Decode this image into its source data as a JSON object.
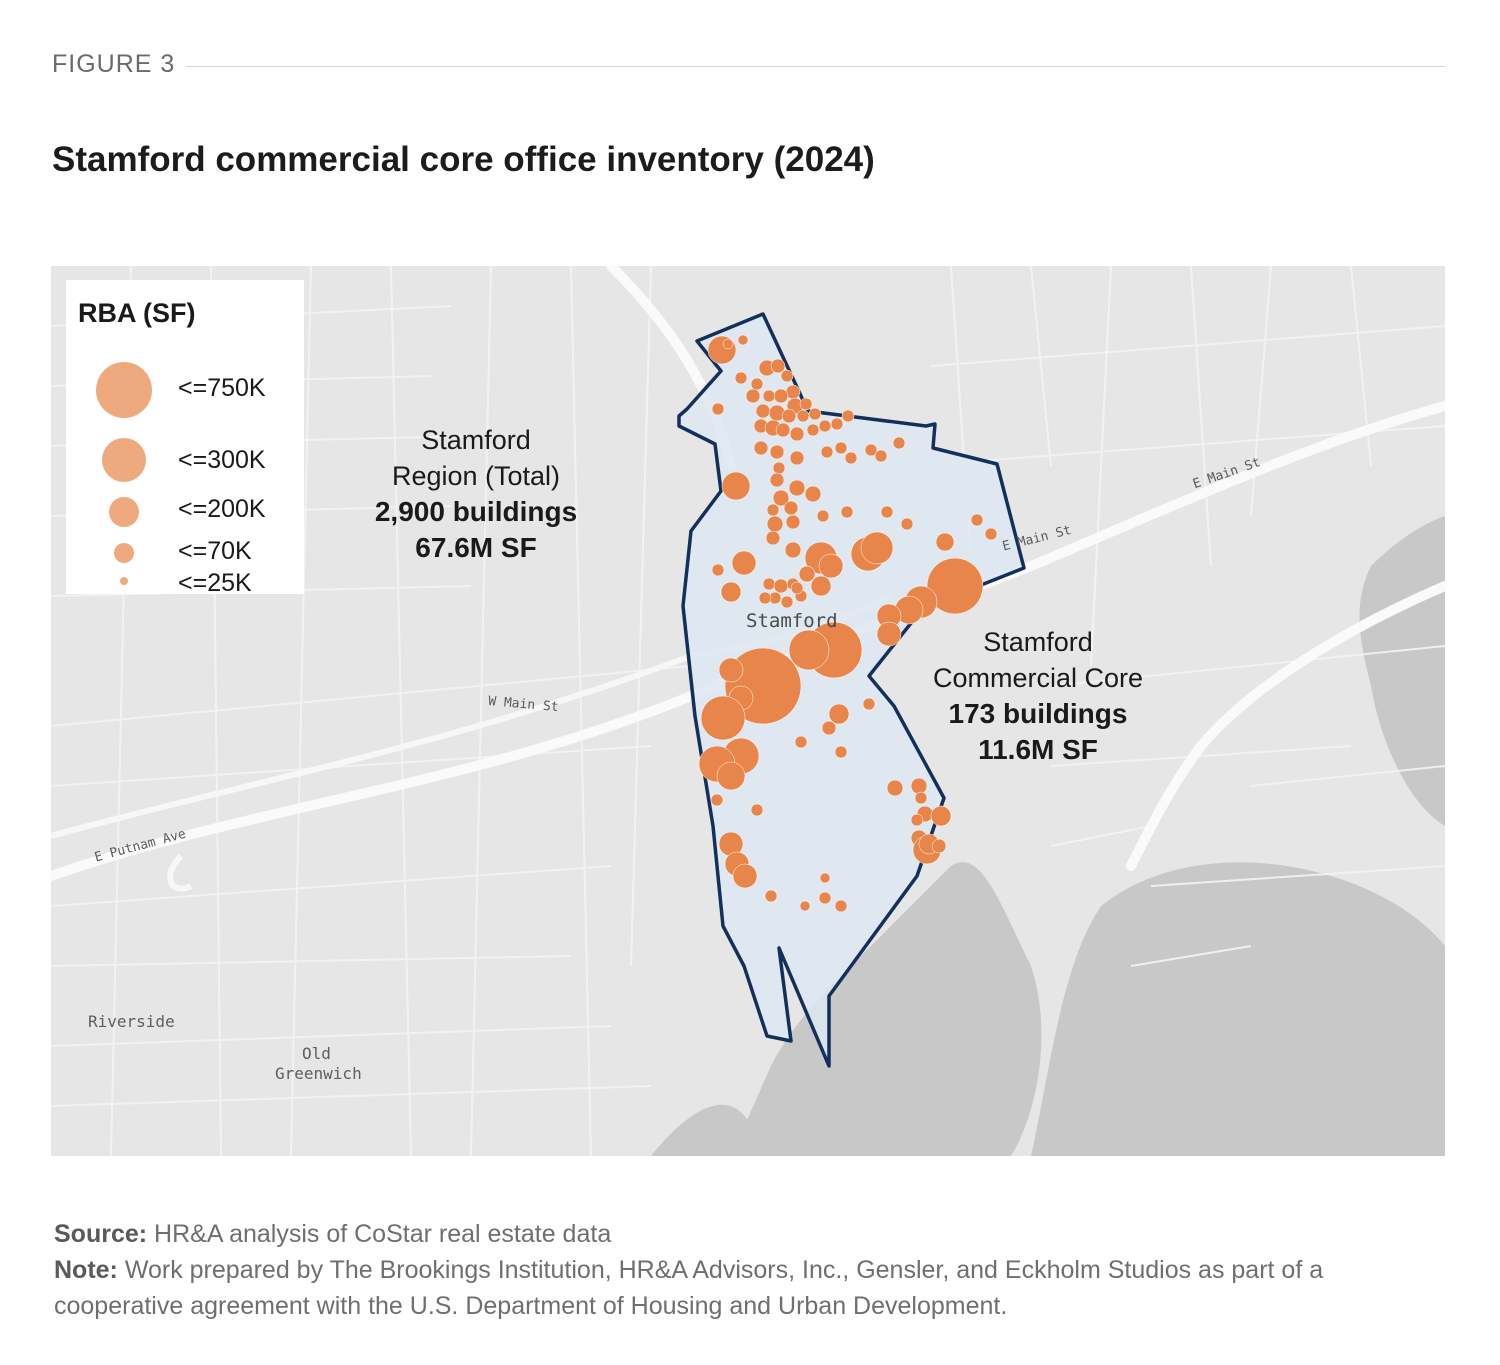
{
  "figure_label": "FIGURE 3",
  "title": "Stamford commercial core office inventory (2024)",
  "legend": {
    "title": "RBA (SF)",
    "items": [
      {
        "label": "<=750K"
      },
      {
        "label": "<=300K"
      },
      {
        "label": "<=200K"
      },
      {
        "label": "<=70K"
      },
      {
        "label": "<=25K"
      }
    ]
  },
  "region": {
    "line1": "Stamford",
    "line2": "Region (Total)",
    "buildings": "2,900 buildings",
    "sf": "67.6M SF"
  },
  "core": {
    "line1": "Stamford",
    "line2": "Commercial Core",
    "buildings": "173 buildings",
    "sf": "11.6M  SF"
  },
  "places": {
    "stamford": "Stamford",
    "riverside": "Riverside",
    "old": "Old",
    "greenwich": "Greenwich"
  },
  "roads": {
    "e_main_1": "E Main St",
    "e_main_2": "E Main St",
    "w_main": "W Main St",
    "e_putnam": "E Putnam Ave"
  },
  "colors": {
    "bubble": "#e8854a",
    "legend_bubble": "#eeaa7e",
    "boundary": "#13305c",
    "boundary_fill": "#dde8f2",
    "water": "#c8c8c8",
    "land": "#e6e6e6"
  },
  "footer": {
    "source_label": "Source:",
    "source_text": " HR&A analysis of CoStar real estate data",
    "note_label": "Note:",
    "note_text": " Work prepared by The Brookings Institution, HR&A Advisors, Inc., Gensler, and Eckholm Studios as part of a cooperative agreement with the U.S. Department of Housing and Urban Development."
  }
}
